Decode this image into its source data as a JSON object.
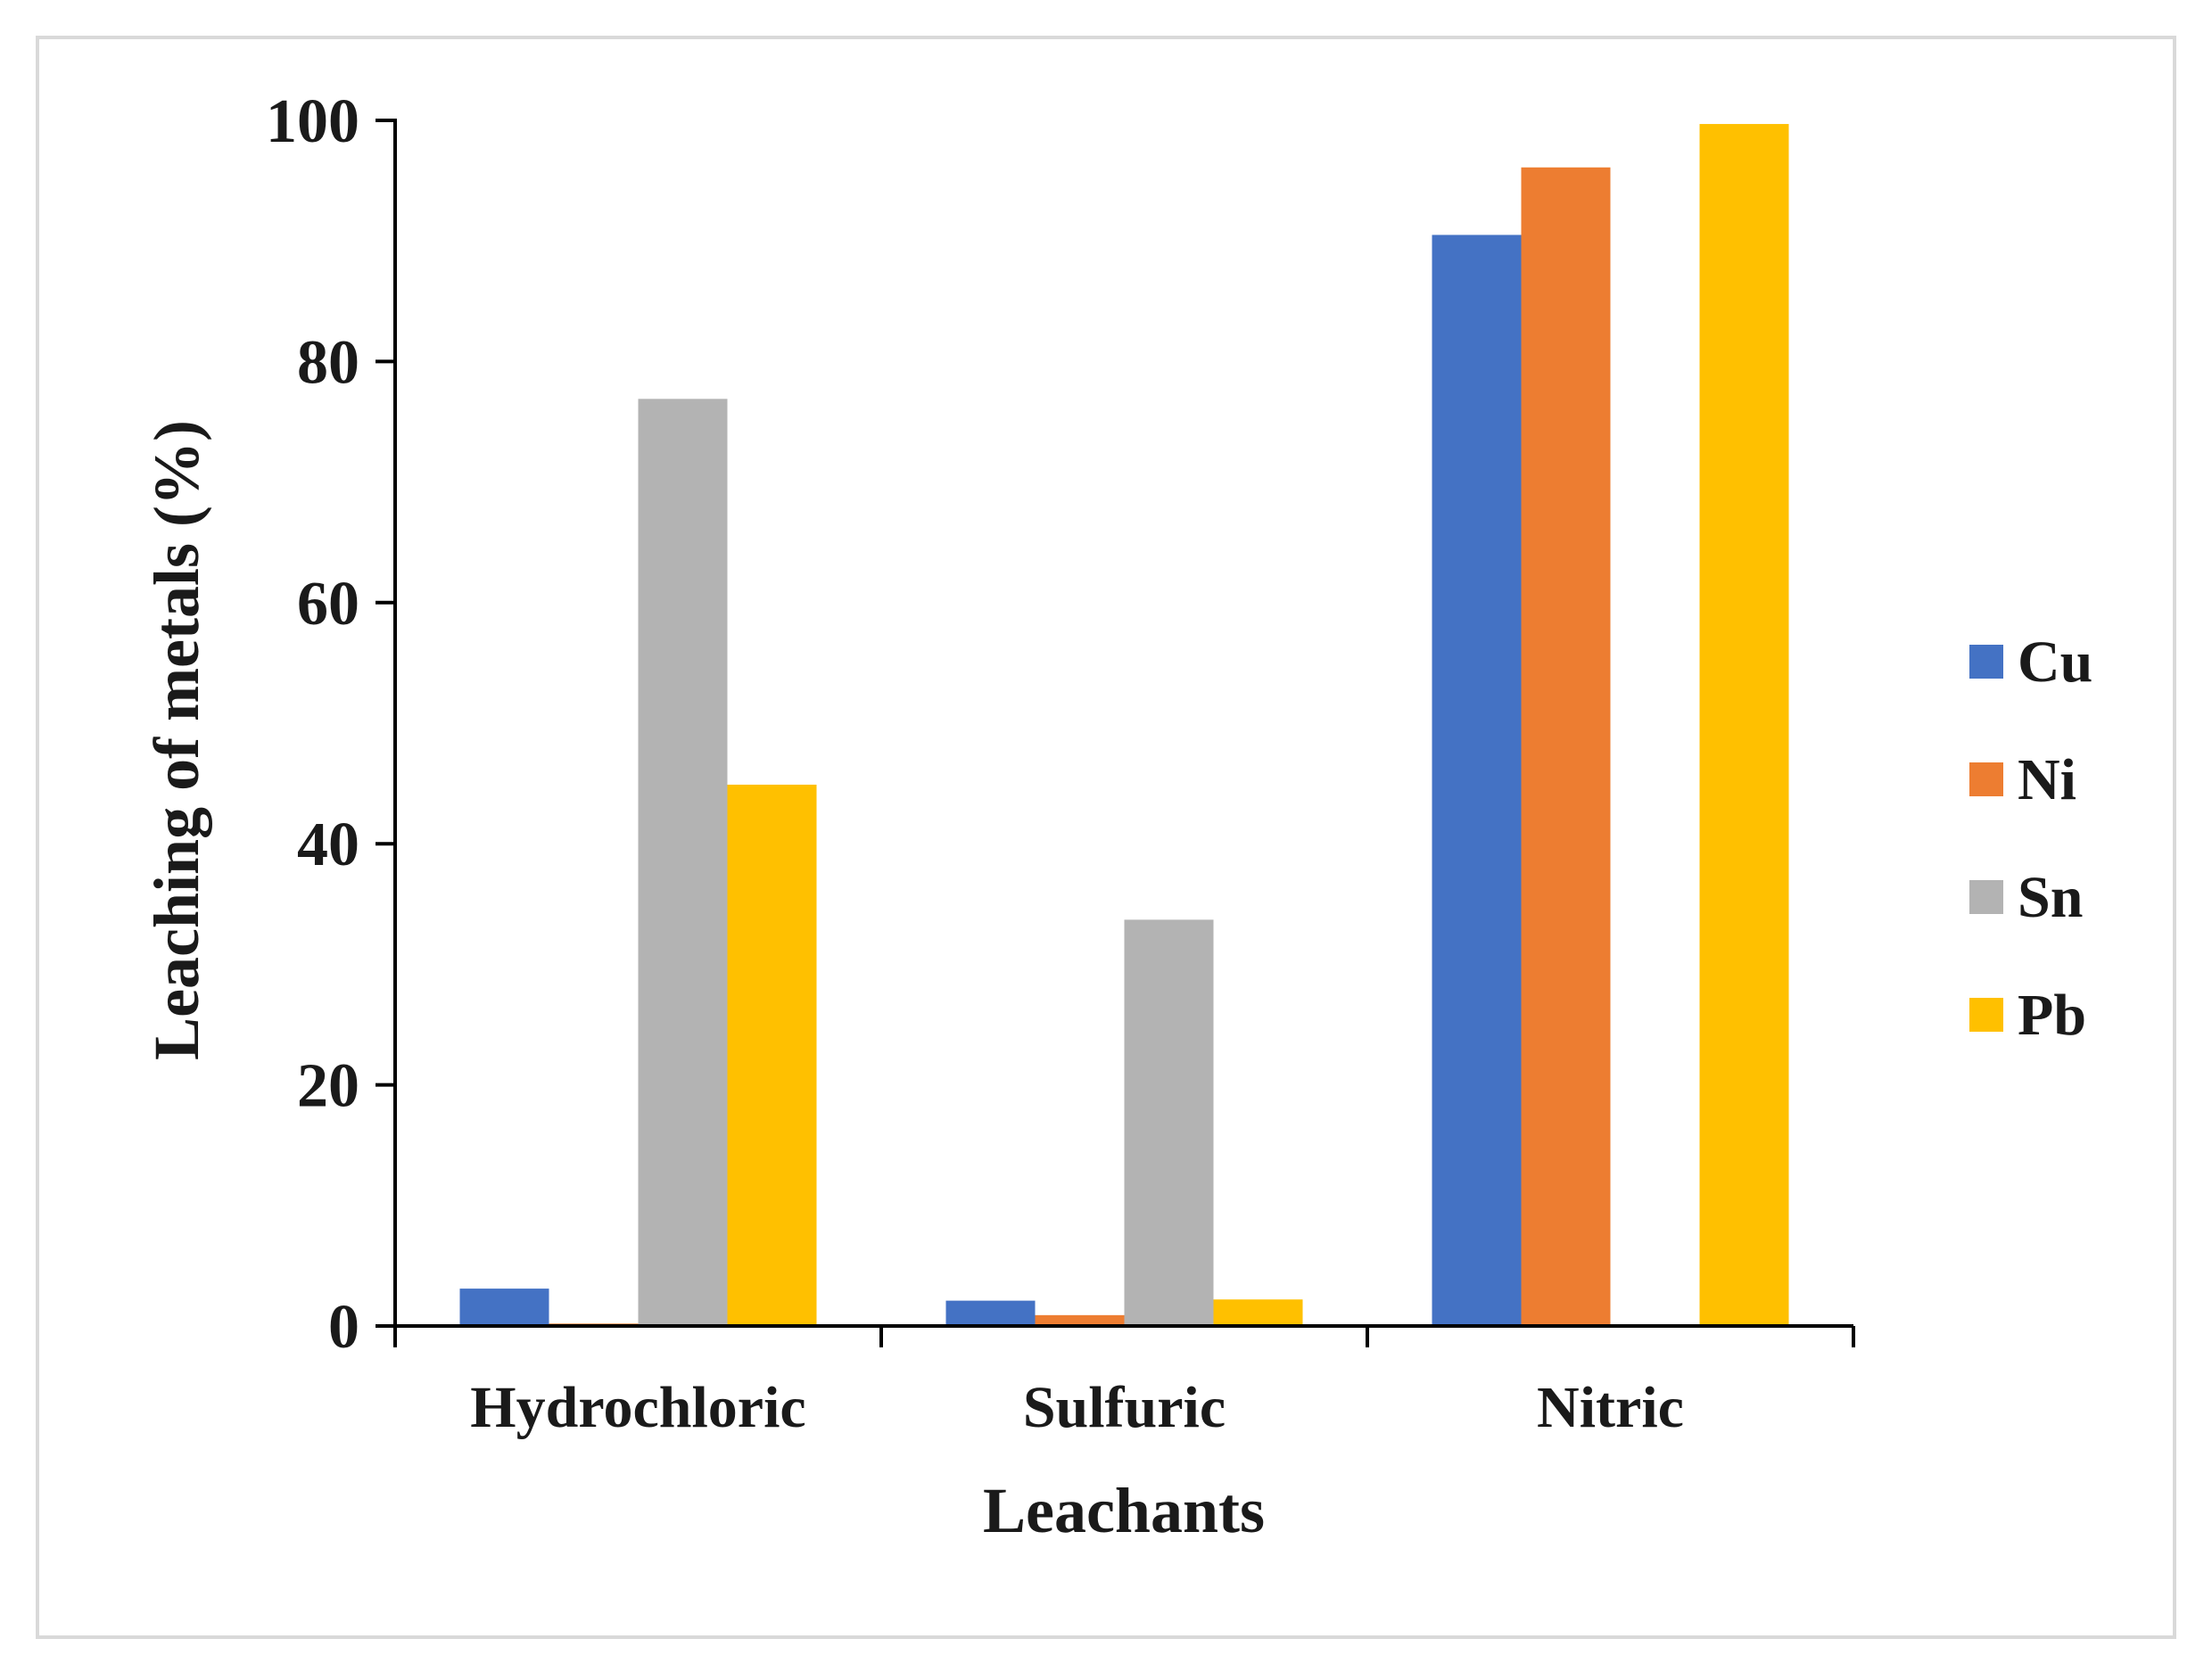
{
  "chart_data": {
    "type": "bar",
    "title": "",
    "xlabel": "Leachants",
    "ylabel": "Leaching of metals (%)",
    "ylim": [
      0,
      100
    ],
    "yticks": [
      "0",
      "20",
      "40",
      "60",
      "80",
      "100"
    ],
    "grid": false,
    "legend_position": "right",
    "categories": [
      "Hydrochloric",
      "Sulfuric",
      "Nitric"
    ],
    "series": [
      {
        "name": "Cu",
        "color": "#4472c4",
        "values": [
          3.1,
          2.1,
          90.5
        ]
      },
      {
        "name": "Ni",
        "color": "#ed7d31",
        "values": [
          0.2,
          0.9,
          96.1
        ]
      },
      {
        "name": "Sn",
        "color": "#b3b3b3",
        "values": [
          76.9,
          33.7,
          0
        ]
      },
      {
        "name": "Pb",
        "color": "#ffc000",
        "values": [
          44.9,
          2.2,
          99.7
        ]
      }
    ]
  }
}
